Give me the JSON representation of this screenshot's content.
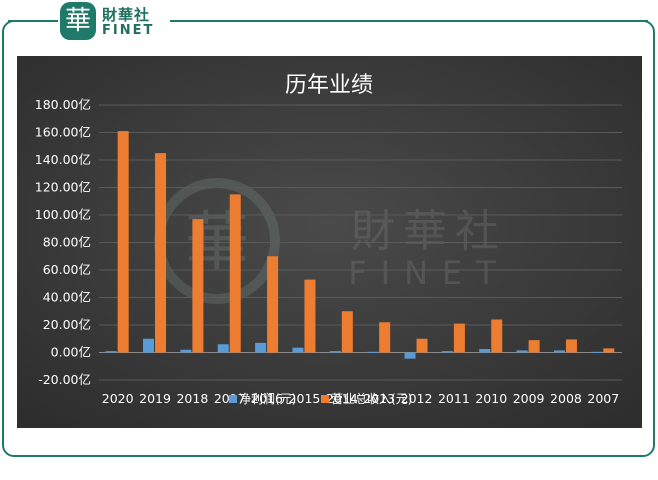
{
  "brand": {
    "mark": "華",
    "name_cn": "財華社",
    "name_en": "FINET"
  },
  "watermark": {
    "name_cn": "財華社",
    "name_en": "FINET"
  },
  "colors": {
    "frame": "#1f7a6a",
    "plot_bg": "#3a3a3a",
    "net_profit": "#5b9bd5",
    "revenue": "#ed7d31",
    "text": "#ffffff"
  },
  "chart_data": {
    "type": "bar",
    "title": "历年业绩",
    "categories": [
      "2020",
      "2019",
      "2018",
      "2017",
      "2016",
      "2015",
      "2014",
      "2013",
      "2012",
      "2011",
      "2010",
      "2009",
      "2008",
      "2007"
    ],
    "series": [
      {
        "name": "净利润(元)",
        "color": "#5b9bd5",
        "values": [
          1.0,
          10.0,
          2.0,
          6.0,
          7.0,
          3.5,
          1.0,
          0.5,
          -4.5,
          1.0,
          2.5,
          1.5,
          1.5,
          0.5
        ]
      },
      {
        "name": "营业总收入(元)",
        "color": "#ed7d31",
        "values": [
          161.0,
          145.0,
          97.0,
          115.0,
          70.0,
          53.0,
          30.0,
          22.0,
          10.0,
          21.0,
          24.0,
          9.0,
          9.5,
          3.0
        ]
      }
    ],
    "ylim": [
      -20,
      180
    ],
    "yticks": [
      -20,
      0,
      20,
      40,
      60,
      80,
      100,
      120,
      140,
      160,
      180
    ],
    "ytick_labels": [
      "-20.00亿",
      "0.00亿",
      "20.00亿",
      "40.00亿",
      "60.00亿",
      "80.00亿",
      "100.00亿",
      "120.00亿",
      "140.00亿",
      "160.00亿",
      "180.00亿"
    ],
    "grid": true,
    "legend_position": "bottom"
  }
}
